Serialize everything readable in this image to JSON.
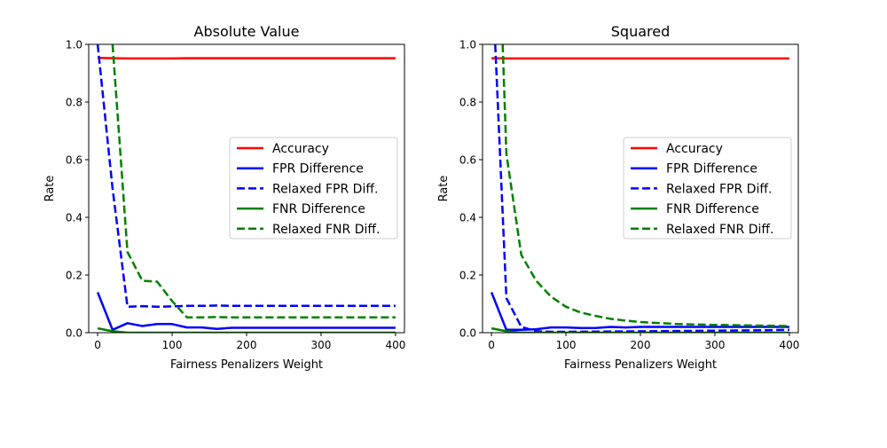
{
  "chart_data": [
    {
      "type": "line",
      "title": "Absolute Value",
      "xlabel": "Fairness Penalizers Weight",
      "ylabel": "Rate",
      "xlim": [
        -12,
        412
      ],
      "ylim": [
        0,
        1
      ],
      "xticks": [
        0,
        100,
        200,
        300,
        400
      ],
      "yticks": [
        0.0,
        0.2,
        0.4,
        0.6,
        0.8,
        1.0
      ],
      "grid": false,
      "legend": "center-right",
      "series": [
        {
          "name": "Accuracy",
          "color": "#ff0000",
          "style": "solid",
          "x": [
            0,
            20,
            40,
            60,
            80,
            100,
            120,
            140,
            160,
            180,
            200,
            250,
            300,
            350,
            400
          ],
          "y": [
            0.953,
            0.952,
            0.951,
            0.951,
            0.951,
            0.951,
            0.952,
            0.952,
            0.952,
            0.952,
            0.952,
            0.952,
            0.952,
            0.952,
            0.952
          ]
        },
        {
          "name": "FPR Difference",
          "color": "#0000ff",
          "style": "solid",
          "x": [
            0,
            20,
            40,
            60,
            80,
            100,
            120,
            140,
            160,
            180,
            200,
            250,
            300,
            350,
            400
          ],
          "y": [
            0.14,
            0.01,
            0.033,
            0.023,
            0.03,
            0.03,
            0.018,
            0.018,
            0.013,
            0.017,
            0.017,
            0.017,
            0.017,
            0.017,
            0.017
          ]
        },
        {
          "name": "Relaxed FPR Diff.",
          "color": "#0000ff",
          "style": "dashed",
          "x": [
            0,
            20,
            40,
            60,
            80,
            100,
            120,
            140,
            160,
            180,
            200,
            250,
            300,
            350,
            400
          ],
          "y": [
            1.0,
            0.5,
            0.09,
            0.092,
            0.09,
            0.091,
            0.093,
            0.093,
            0.094,
            0.093,
            0.093,
            0.093,
            0.093,
            0.093,
            0.093
          ]
        },
        {
          "name": "FNR Difference",
          "color": "#008000",
          "style": "solid",
          "x": [
            0,
            20,
            40,
            60,
            80,
            100,
            150,
            200,
            300,
            400
          ],
          "y": [
            0.015,
            0.005,
            0.0,
            0.0,
            0.0,
            0.0,
            0.0,
            0.0,
            0.0,
            0.0
          ]
        },
        {
          "name": "Relaxed FNR Diff.",
          "color": "#008000",
          "style": "dashed",
          "x": [
            20,
            40,
            60,
            80,
            100,
            120,
            140,
            160,
            180,
            200,
            250,
            300,
            350,
            400
          ],
          "y": [
            1.0,
            0.28,
            0.18,
            0.177,
            0.11,
            0.053,
            0.053,
            0.054,
            0.053,
            0.053,
            0.053,
            0.053,
            0.053,
            0.053
          ]
        }
      ]
    },
    {
      "type": "line",
      "title": "Squared",
      "xlabel": "Fairness Penalizers Weight",
      "ylabel": "Rate",
      "xlim": [
        -12,
        412
      ],
      "ylim": [
        0,
        1
      ],
      "xticks": [
        0,
        100,
        200,
        300,
        400
      ],
      "yticks": [
        0.0,
        0.2,
        0.4,
        0.6,
        0.8,
        1.0
      ],
      "grid": false,
      "legend": "center-right",
      "series": [
        {
          "name": "Accuracy",
          "color": "#ff0000",
          "style": "solid",
          "x": [
            0,
            20,
            40,
            60,
            80,
            100,
            150,
            200,
            250,
            300,
            350,
            400
          ],
          "y": [
            0.952,
            0.951,
            0.951,
            0.951,
            0.951,
            0.951,
            0.951,
            0.951,
            0.951,
            0.951,
            0.951,
            0.951
          ]
        },
        {
          "name": "FPR Difference",
          "color": "#0000ff",
          "style": "solid",
          "x": [
            0,
            20,
            40,
            60,
            80,
            100,
            120,
            140,
            160,
            180,
            200,
            250,
            300,
            350,
            400
          ],
          "y": [
            0.14,
            0.01,
            0.01,
            0.012,
            0.018,
            0.018,
            0.016,
            0.016,
            0.02,
            0.018,
            0.02,
            0.02,
            0.02,
            0.02,
            0.02
          ]
        },
        {
          "name": "Relaxed FPR Diff.",
          "color": "#0000ff",
          "style": "dashed",
          "x": [
            5,
            20,
            40,
            60,
            80,
            100,
            150,
            200,
            250,
            300,
            350,
            400
          ],
          "y": [
            1.0,
            0.12,
            0.02,
            0.005,
            0.003,
            0.003,
            0.004,
            0.005,
            0.006,
            0.007,
            0.008,
            0.01
          ]
        },
        {
          "name": "FNR Difference",
          "color": "#008000",
          "style": "solid",
          "x": [
            0,
            20,
            40,
            60,
            80,
            100,
            150,
            200,
            300,
            400
          ],
          "y": [
            0.015,
            0.005,
            0.0,
            0.0,
            0.0,
            0.0,
            0.0,
            0.0,
            0.0,
            0.0
          ]
        },
        {
          "name": "Relaxed FNR Diff.",
          "color": "#008000",
          "style": "dashed",
          "x": [
            15,
            20,
            40,
            60,
            80,
            100,
            120,
            140,
            160,
            180,
            200,
            250,
            300,
            350,
            400
          ],
          "y": [
            1.0,
            0.62,
            0.27,
            0.18,
            0.125,
            0.09,
            0.07,
            0.058,
            0.048,
            0.042,
            0.037,
            0.03,
            0.027,
            0.025,
            0.023
          ]
        }
      ]
    }
  ]
}
